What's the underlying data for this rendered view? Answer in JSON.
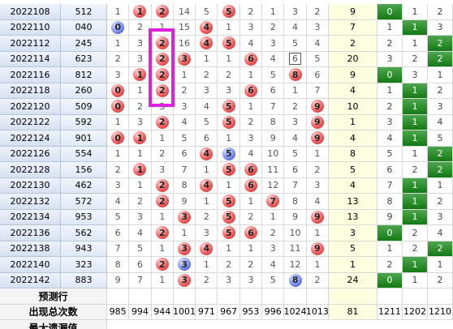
{
  "rows": [
    {
      "issue": "2022108",
      "number": "512",
      "cells": [
        {
          "value": 1
        },
        {
          "value": 1,
          "ball": "red"
        },
        {
          "value": 2,
          "ball": "red"
        },
        {
          "value": 14
        },
        {
          "value": 5
        },
        {
          "value": 5,
          "ball": "red"
        },
        {
          "value": 2
        },
        {
          "value": 1
        },
        {
          "value": 3
        },
        {
          "value": 2
        }
      ],
      "sum": 9,
      "groups": [
        {
          "value": 0,
          "hit": true
        },
        {
          "value": 1
        },
        {
          "value": 2
        }
      ]
    },
    {
      "issue": "2022110",
      "number": "040",
      "cells": [
        {
          "value": 0,
          "ball": "blue"
        },
        {
          "value": 2
        },
        {
          "value": 1
        },
        {
          "value": 15
        },
        {
          "value": 4,
          "ball": "red"
        },
        {
          "value": 1
        },
        {
          "value": 3
        },
        {
          "value": 2
        },
        {
          "value": 4
        },
        {
          "value": 3
        }
      ],
      "sum": 7,
      "groups": [
        {
          "value": 1
        },
        {
          "value": 1,
          "hit": true
        },
        {
          "value": 3
        }
      ]
    },
    {
      "issue": "2022112",
      "number": "245",
      "cells": [
        {
          "value": 1
        },
        {
          "value": 3
        },
        {
          "value": 2,
          "ball": "red"
        },
        {
          "value": 16
        },
        {
          "value": 4,
          "ball": "red"
        },
        {
          "value": 5,
          "ball": "red"
        },
        {
          "value": 4
        },
        {
          "value": 3
        },
        {
          "value": 5
        },
        {
          "value": 4
        }
      ],
      "sum": 2,
      "groups": [
        {
          "value": 2
        },
        {
          "value": 1
        },
        {
          "value": 2,
          "hit": true
        }
      ]
    },
    {
      "issue": "2022114",
      "number": "623",
      "cells": [
        {
          "value": 2
        },
        {
          "value": 3
        },
        {
          "value": 2,
          "ball": "red"
        },
        {
          "value": 3,
          "ball": "red"
        },
        {
          "value": 1
        },
        {
          "value": 1
        },
        {
          "value": 6,
          "ball": "red"
        },
        {
          "value": 4
        },
        {
          "value": 6,
          "boxed": true
        },
        {
          "value": 5
        }
      ],
      "sum": 20,
      "groups": [
        {
          "value": 3
        },
        {
          "value": 2
        },
        {
          "value": 2,
          "hit": true
        }
      ]
    },
    {
      "issue": "2022116",
      "number": "812",
      "cells": [
        {
          "value": 3
        },
        {
          "value": 1,
          "ball": "red"
        },
        {
          "value": 2,
          "ball": "red"
        },
        {
          "value": 1
        },
        {
          "value": 2
        },
        {
          "value": 2
        },
        {
          "value": 1
        },
        {
          "value": 5
        },
        {
          "value": 8,
          "ball": "red"
        },
        {
          "value": 6
        }
      ],
      "sum": 9,
      "groups": [
        {
          "value": 0,
          "hit": true
        },
        {
          "value": 3
        },
        {
          "value": 1
        }
      ]
    },
    {
      "issue": "2022118",
      "number": "260",
      "cells": [
        {
          "value": 0,
          "ball": "red"
        },
        {
          "value": 1
        },
        {
          "value": 2,
          "ball": "red"
        },
        {
          "value": 2
        },
        {
          "value": 3
        },
        {
          "value": 3
        },
        {
          "value": 6,
          "ball": "red"
        },
        {
          "value": 6
        },
        {
          "value": 1
        },
        {
          "value": 7
        }
      ],
      "sum": 4,
      "groups": [
        {
          "value": 1
        },
        {
          "value": 1,
          "hit": true
        },
        {
          "value": 2
        }
      ]
    },
    {
      "issue": "2022120",
      "number": "509",
      "cells": [
        {
          "value": 0,
          "ball": "red"
        },
        {
          "value": 2
        },
        {
          "value": 3
        },
        {
          "value": 3
        },
        {
          "value": 4
        },
        {
          "value": 5,
          "ball": "red"
        },
        {
          "value": 1
        },
        {
          "value": 7
        },
        {
          "value": 2
        },
        {
          "value": 9,
          "ball": "red"
        }
      ],
      "sum": 10,
      "groups": [
        {
          "value": 2
        },
        {
          "value": 1,
          "hit": true
        },
        {
          "value": 3
        }
      ]
    },
    {
      "issue": "2022122",
      "number": "592",
      "cells": [
        {
          "value": 1
        },
        {
          "value": 3
        },
        {
          "value": 2,
          "ball": "red"
        },
        {
          "value": 4
        },
        {
          "value": 5
        },
        {
          "value": 5,
          "ball": "red"
        },
        {
          "value": 2
        },
        {
          "value": 8
        },
        {
          "value": 3
        },
        {
          "value": 9,
          "ball": "red"
        }
      ],
      "sum": 1,
      "groups": [
        {
          "value": 3
        },
        {
          "value": 1,
          "hit": true
        },
        {
          "value": 4
        }
      ]
    },
    {
      "issue": "2022124",
      "number": "901",
      "cells": [
        {
          "value": 0,
          "ball": "red"
        },
        {
          "value": 1,
          "ball": "red"
        },
        {
          "value": 1
        },
        {
          "value": 5
        },
        {
          "value": 6
        },
        {
          "value": 1
        },
        {
          "value": 3
        },
        {
          "value": 9
        },
        {
          "value": 4
        },
        {
          "value": 9,
          "ball": "red"
        }
      ],
      "sum": 4,
      "groups": [
        {
          "value": 4
        },
        {
          "value": 1,
          "hit": true
        },
        {
          "value": 5
        }
      ]
    },
    {
      "issue": "2022126",
      "number": "554",
      "cells": [
        {
          "value": 1
        },
        {
          "value": 1
        },
        {
          "value": 2
        },
        {
          "value": 6
        },
        {
          "value": 4,
          "ball": "red"
        },
        {
          "value": 5,
          "ball": "blue"
        },
        {
          "value": 4
        },
        {
          "value": 10
        },
        {
          "value": 5
        },
        {
          "value": 1
        }
      ],
      "sum": 8,
      "groups": [
        {
          "value": 5
        },
        {
          "value": 1
        },
        {
          "value": 2,
          "hit": true
        }
      ]
    },
    {
      "issue": "2022128",
      "number": "156",
      "cells": [
        {
          "value": 2
        },
        {
          "value": 1,
          "ball": "red"
        },
        {
          "value": 3
        },
        {
          "value": 7
        },
        {
          "value": 1
        },
        {
          "value": 5,
          "ball": "red"
        },
        {
          "value": 6,
          "ball": "red"
        },
        {
          "value": 11
        },
        {
          "value": 6
        },
        {
          "value": 2
        }
      ],
      "sum": 5,
      "groups": [
        {
          "value": 6
        },
        {
          "value": 2
        },
        {
          "value": 2,
          "hit": true
        }
      ]
    },
    {
      "issue": "2022130",
      "number": "462",
      "cells": [
        {
          "value": 3
        },
        {
          "value": 1
        },
        {
          "value": 2,
          "ball": "red"
        },
        {
          "value": 8
        },
        {
          "value": 4,
          "ball": "red"
        },
        {
          "value": 1
        },
        {
          "value": 6,
          "ball": "red"
        },
        {
          "value": 12
        },
        {
          "value": 7
        },
        {
          "value": 3
        }
      ],
      "sum": 4,
      "groups": [
        {
          "value": 7
        },
        {
          "value": 1,
          "hit": true
        },
        {
          "value": 1
        }
      ]
    },
    {
      "issue": "2022132",
      "number": "572",
      "cells": [
        {
          "value": 4
        },
        {
          "value": 2
        },
        {
          "value": 2,
          "ball": "red"
        },
        {
          "value": 9
        },
        {
          "value": 1
        },
        {
          "value": 5,
          "ball": "red"
        },
        {
          "value": 1
        },
        {
          "value": 7,
          "ball": "red"
        },
        {
          "value": 8
        },
        {
          "value": 4
        }
      ],
      "sum": 13,
      "groups": [
        {
          "value": 8
        },
        {
          "value": 1,
          "hit": true
        },
        {
          "value": 2
        }
      ]
    },
    {
      "issue": "2022134",
      "number": "953",
      "cells": [
        {
          "value": 5
        },
        {
          "value": 3
        },
        {
          "value": 1
        },
        {
          "value": 3,
          "ball": "red"
        },
        {
          "value": 2
        },
        {
          "value": 5,
          "ball": "red"
        },
        {
          "value": 2
        },
        {
          "value": 1
        },
        {
          "value": 9
        },
        {
          "value": 9,
          "ball": "red"
        }
      ],
      "sum": 13,
      "groups": [
        {
          "value": 9
        },
        {
          "value": 1,
          "hit": true
        },
        {
          "value": 3
        }
      ]
    },
    {
      "issue": "2022136",
      "number": "562",
      "cells": [
        {
          "value": 6
        },
        {
          "value": 4
        },
        {
          "value": 2,
          "ball": "red"
        },
        {
          "value": 1
        },
        {
          "value": 3
        },
        {
          "value": 5,
          "ball": "red"
        },
        {
          "value": 6,
          "ball": "red"
        },
        {
          "value": 2
        },
        {
          "value": 10
        },
        {
          "value": 1
        }
      ],
      "sum": 3,
      "groups": [
        {
          "value": 0,
          "hit": true
        },
        {
          "value": 2
        },
        {
          "value": 4
        }
      ]
    },
    {
      "issue": "2022138",
      "number": "943",
      "cells": [
        {
          "value": 7
        },
        {
          "value": 5
        },
        {
          "value": 1
        },
        {
          "value": 3,
          "ball": "red"
        },
        {
          "value": 4,
          "ball": "red"
        },
        {
          "value": 1
        },
        {
          "value": 1
        },
        {
          "value": 3
        },
        {
          "value": 11
        },
        {
          "value": 9,
          "ball": "red"
        }
      ],
      "sum": 5,
      "groups": [
        {
          "value": 1
        },
        {
          "value": 2
        },
        {
          "value": 2,
          "hit": true
        }
      ]
    },
    {
      "issue": "2022140",
      "number": "323",
      "cells": [
        {
          "value": 8
        },
        {
          "value": 6
        },
        {
          "value": 2,
          "ball": "red"
        },
        {
          "value": 3,
          "ball": "blue"
        },
        {
          "value": 1
        },
        {
          "value": 2
        },
        {
          "value": 2
        },
        {
          "value": 4
        },
        {
          "value": 12
        },
        {
          "value": 1
        }
      ],
      "sum": 1,
      "groups": [
        {
          "value": 2
        },
        {
          "value": 1,
          "hit": true
        },
        {
          "value": 1
        }
      ]
    },
    {
      "issue": "2022142",
      "number": "883",
      "cells": [
        {
          "value": 9
        },
        {
          "value": 7
        },
        {
          "value": 1
        },
        {
          "value": 3,
          "ball": "red"
        },
        {
          "value": 2
        },
        {
          "value": 3
        },
        {
          "value": 3
        },
        {
          "value": 5
        },
        {
          "value": 8,
          "ball": "blue"
        },
        {
          "value": 2
        }
      ],
      "sum": 24,
      "groups": [
        {
          "value": 0,
          "hit": true
        },
        {
          "value": 1
        },
        {
          "value": 2
        }
      ]
    }
  ],
  "forecast": {
    "label": "预测行"
  },
  "totals": {
    "label": "出现总次数",
    "cells": [
      985,
      994,
      944,
      1001,
      971,
      967,
      953,
      996,
      1024,
      1013
    ],
    "sum": 81,
    "groups": [
      1211,
      1202,
      1210
    ]
  },
  "max_miss": {
    "label": "最大遗漏值"
  }
}
